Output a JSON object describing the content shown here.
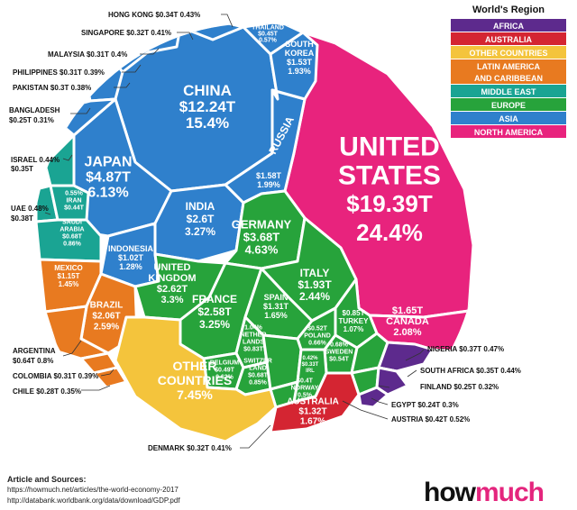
{
  "legend": {
    "title": "World's Region",
    "items": [
      {
        "label": "AFRICA",
        "color": "#5d2a8d"
      },
      {
        "label": "AUSTRALIA",
        "color": "#d42532"
      },
      {
        "label": "OTHER COUNTRIES",
        "color": "#f4c43c"
      },
      {
        "label": "LATIN AMERICA AND CARIBBEAN",
        "line1": "LATIN AMERICA",
        "line2": "AND CARIBBEAN",
        "color": "#e87a20"
      },
      {
        "label": "MIDDLE EAST",
        "color": "#1aa493"
      },
      {
        "label": "EUROPE",
        "color": "#27a33b"
      },
      {
        "label": "ASIA",
        "color": "#2f80cc"
      },
      {
        "label": "NORTH AMERICA",
        "color": "#e8237d"
      }
    ]
  },
  "chart_data": {
    "type": "voronoi-treemap",
    "units": "GDP in trillions USD, % share of world economy",
    "regions": [
      {
        "region": "NORTH AMERICA",
        "countries": [
          {
            "name": "UNITED STATES",
            "value": "$19.39T",
            "share": "24.4%"
          },
          {
            "name": "CANADA",
            "value": "$1.65T",
            "share": "2.08%"
          }
        ]
      },
      {
        "region": "ASIA",
        "countries": [
          {
            "name": "CHINA",
            "value": "$12.24T",
            "share": "15.4%"
          },
          {
            "name": "JAPAN",
            "value": "$4.87T",
            "share": "6.13%"
          },
          {
            "name": "INDIA",
            "value": "$2.6T",
            "share": "3.27%"
          },
          {
            "name": "RUSSIA",
            "value": "$1.58T",
            "share": "1.99%"
          },
          {
            "name": "SOUTH KOREA",
            "value": "$1.53T",
            "share": "1.93%"
          },
          {
            "name": "INDONESIA",
            "value": "$1.02T",
            "share": "1.28%"
          },
          {
            "name": "THAILAND",
            "value": "$0.45T",
            "share": "0.57%"
          },
          {
            "name": "HONG KONG",
            "value": "$0.34T",
            "share": "0.43%"
          },
          {
            "name": "SINGAPORE",
            "value": "$0.32T",
            "share": "0.41%"
          },
          {
            "name": "MALAYSIA",
            "value": "$0.31T",
            "share": "0.4%"
          },
          {
            "name": "PHILIPPINES",
            "value": "$0.31T",
            "share": "0.39%"
          },
          {
            "name": "PAKISTAN",
            "value": "$0.3T",
            "share": "0.38%"
          },
          {
            "name": "BANGLADESH",
            "value": "$0.25T",
            "share": "0.31%"
          }
        ]
      },
      {
        "region": "EUROPE",
        "countries": [
          {
            "name": "GERMANY",
            "value": "$3.68T",
            "share": "4.63%"
          },
          {
            "name": "UNITED KINGDOM",
            "value": "$2.62T",
            "share": "3.3%"
          },
          {
            "name": "FRANCE",
            "value": "$2.58T",
            "share": "3.25%"
          },
          {
            "name": "ITALY",
            "value": "$1.93T",
            "share": "2.44%"
          },
          {
            "name": "SPAIN",
            "value": "$1.31T",
            "share": "1.65%"
          },
          {
            "name": "NETHERLANDS",
            "value": "$0.83T",
            "share": "1.04%"
          },
          {
            "name": "TURKEY",
            "value": "$0.85T",
            "share": "1.07%"
          },
          {
            "name": "SWEDEN",
            "value": "$0.54T",
            "share": "0.68%"
          },
          {
            "name": "POLAND",
            "value": "$0.52T",
            "share": "0.66%"
          },
          {
            "name": "BELGIUM",
            "value": "$0.49T",
            "share": "0.62%"
          },
          {
            "name": "SWITZERLAND",
            "value": "$0.68T",
            "share": "0.85%"
          },
          {
            "name": "AUSTRIA",
            "value": "$0.42T",
            "share": "0.52%"
          },
          {
            "name": "IRELAND",
            "value": "$0.33T",
            "share": "0.42%"
          },
          {
            "name": "NORWAY",
            "value": "$0.4T",
            "share": "0.5%"
          },
          {
            "name": "DENMARK",
            "value": "$0.32T",
            "share": "0.41%"
          },
          {
            "name": "FINLAND",
            "value": "$0.25T",
            "share": "0.32%"
          }
        ]
      },
      {
        "region": "MIDDLE EAST",
        "countries": [
          {
            "name": "ISRAEL",
            "value": "$0.35T",
            "share": "0.44%"
          },
          {
            "name": "UAE",
            "value": "$0.38T",
            "share": "0.48%"
          },
          {
            "name": "IRAN",
            "value": "$0.44T",
            "share": "0.55%"
          },
          {
            "name": "SAUDI ARABIA",
            "value": "$0.68T",
            "share": "0.86%"
          }
        ]
      },
      {
        "region": "LATIN AMERICA AND CARIBBEAN",
        "countries": [
          {
            "name": "BRAZIL",
            "value": "$2.06T",
            "share": "2.59%"
          },
          {
            "name": "MEXICO",
            "value": "$1.15T",
            "share": "1.45%"
          },
          {
            "name": "ARGENTINA",
            "value": "$0.64T",
            "share": "0.8%"
          },
          {
            "name": "COLOMBIA",
            "value": "$0.31T",
            "share": "0.39%"
          },
          {
            "name": "CHILE",
            "value": "$0.28T",
            "share": "0.35%"
          }
        ]
      },
      {
        "region": "AUSTRALIA",
        "countries": [
          {
            "name": "AUSTRALIA",
            "value": "$1.32T",
            "share": "1.67%"
          }
        ]
      },
      {
        "region": "AFRICA",
        "countries": [
          {
            "name": "NIGERIA",
            "value": "$0.37T",
            "share": "0.47%"
          },
          {
            "name": "SOUTH AFRICA",
            "value": "$0.35T",
            "share": "0.44%"
          },
          {
            "name": "EGYPT",
            "value": "$0.24T",
            "share": "0.3%"
          }
        ]
      },
      {
        "region": "OTHER COUNTRIES",
        "countries": [
          {
            "name": "OTHER COUNTRIES",
            "value": "",
            "share": "7.45%"
          }
        ]
      }
    ],
    "cells": [
      {
        "key": "us",
        "label": [
          "UNITED",
          "STATES",
          "$19.39T",
          "24.4%"
        ],
        "region": 7
      },
      {
        "key": "canada",
        "label": [
          "$1.65T",
          "CANADA",
          "2.08%"
        ],
        "region": 7
      },
      {
        "key": "china",
        "label": [
          "CHINA",
          "$12.24T",
          "15.4%"
        ],
        "region": 6
      },
      {
        "key": "japan",
        "label": [
          "JAPAN",
          "$4.87T",
          "6.13%"
        ],
        "region": 6
      },
      {
        "key": "india",
        "label": [
          "INDIA",
          "$2.6T",
          "3.27%"
        ],
        "region": 6
      },
      {
        "key": "russia",
        "label": [
          "RUSSIA"
        ],
        "region": 6
      },
      {
        "key": "russia2",
        "label": [
          "$1.58T",
          "1.99%"
        ],
        "region": 6
      },
      {
        "key": "korea",
        "label": [
          "SOUTH",
          "KOREA",
          "$1.53T",
          "1.93%"
        ],
        "region": 6
      },
      {
        "key": "indonesia",
        "label": [
          "INDONESIA",
          "$1.02T",
          "1.28%"
        ],
        "region": 6
      },
      {
        "key": "thailand",
        "label": [
          "THAILAND",
          "$0.45T",
          "0.57%"
        ],
        "region": 6
      },
      {
        "key": "germany",
        "label": [
          "GERMANY",
          "$3.68T",
          "4.63%"
        ],
        "region": 5
      },
      {
        "key": "uk",
        "label": [
          "UNITED",
          "KINGDOM",
          "$2.62T",
          "3.3%"
        ],
        "region": 5
      },
      {
        "key": "france",
        "label": [
          "FRANCE",
          "$2.58T",
          "3.25%"
        ],
        "region": 5
      },
      {
        "key": "italy",
        "label": [
          "ITALY",
          "$1.93T",
          "2.44%"
        ],
        "region": 5
      },
      {
        "key": "spain",
        "label": [
          "SPAIN",
          "$1.31T",
          "1.65%"
        ],
        "region": 5
      },
      {
        "key": "nether",
        "label": [
          "1.04%",
          "NETHER",
          "LANDS",
          "$0.83T"
        ],
        "region": 5
      },
      {
        "key": "turkey",
        "label": [
          "$0.85T",
          "TURKEY",
          "1.07%"
        ],
        "region": 5
      },
      {
        "key": "sweden",
        "label": [
          "0.68%",
          "SWEDEN",
          "$0.54T"
        ],
        "region": 5
      },
      {
        "key": "poland",
        "label": [
          "$0.52T",
          "POLAND",
          "0.66%"
        ],
        "region": 5
      },
      {
        "key": "belgium",
        "label": [
          "BELGIUM",
          "$0.49T",
          "0.62%"
        ],
        "region": 5
      },
      {
        "key": "swiss",
        "label": [
          "SWITZER",
          "LAND",
          "$0.68T",
          "0.85%"
        ],
        "region": 5
      },
      {
        "key": "ireland",
        "label": [
          "0.42%",
          "$0.33T",
          "IRL"
        ],
        "region": 5
      },
      {
        "key": "norway",
        "label": [
          "$0.4T",
          "NORWAY",
          "0.5%"
        ],
        "region": 5
      },
      {
        "key": "iran",
        "label": [
          "0.55%",
          "IRAN",
          "$0.44T"
        ],
        "region": 4
      },
      {
        "key": "saudi",
        "label": [
          "SAUDI",
          "ARABIA",
          "$0.68T",
          "0.86%"
        ],
        "region": 4
      },
      {
        "key": "brazil",
        "label": [
          "BRAZIL",
          "$2.06T",
          "2.59%"
        ],
        "region": 3
      },
      {
        "key": "mexico",
        "label": [
          "MEXICO",
          "$1.15T",
          "1.45%"
        ],
        "region": 3
      },
      {
        "key": "other",
        "label": [
          "OTHER",
          "COUNTRIES",
          "7.45%"
        ],
        "region": 2
      },
      {
        "key": "australia",
        "label": [
          "AUSTRALIA",
          "$1.32T",
          "1.67%"
        ],
        "region": 1
      }
    ],
    "callouts": [
      {
        "key": "hk",
        "text": "HONG KONG $0.34T 0.43%"
      },
      {
        "key": "sg",
        "text": "SINGAPORE $0.32T 0.41%"
      },
      {
        "key": "my",
        "text": "MALAYSIA $0.31T 0.4%"
      },
      {
        "key": "ph",
        "text": "PHILIPPINES $0.31T 0.39%"
      },
      {
        "key": "pk",
        "text": "PAKISTAN $0.3T 0.38%"
      },
      {
        "key": "bd1",
        "text": "BANGLADESH"
      },
      {
        "key": "bd2",
        "text": "$0.25T 0.31%"
      },
      {
        "key": "il1",
        "text": "ISRAEL 0.44%"
      },
      {
        "key": "il2",
        "text": "$0.35T"
      },
      {
        "key": "ae1",
        "text": "UAE 0.48%"
      },
      {
        "key": "ae2",
        "text": "$0.38T"
      },
      {
        "key": "ar1",
        "text": "ARGENTINA"
      },
      {
        "key": "ar2",
        "text": "$0.64T 0.8%"
      },
      {
        "key": "co",
        "text": "COLOMBIA $0.31T 0.39%"
      },
      {
        "key": "cl",
        "text": "CHILE $0.28T 0.35%"
      },
      {
        "key": "dk",
        "text": "DENMARK $0.32T 0.41%"
      },
      {
        "key": "ng",
        "text": "NIGERIA $0.37T 0.47%"
      },
      {
        "key": "za",
        "text": "SOUTH AFRICA $0.35T 0.44%"
      },
      {
        "key": "fi",
        "text": "FINLAND $0.25T 0.32%"
      },
      {
        "key": "eg",
        "text": "EGYPT $0.24T 0.3%"
      },
      {
        "key": "at",
        "text": "AUSTRIA $0.42T 0.52%"
      }
    ]
  },
  "sources": {
    "title": "Article and Sources:",
    "line1": "https://howmuch.net/articles/the-world-economy-2017",
    "line2": "http://databank.worldbank.org/data/download/GDP.pdf"
  },
  "logo": {
    "part1": "how",
    "part2": "much"
  }
}
